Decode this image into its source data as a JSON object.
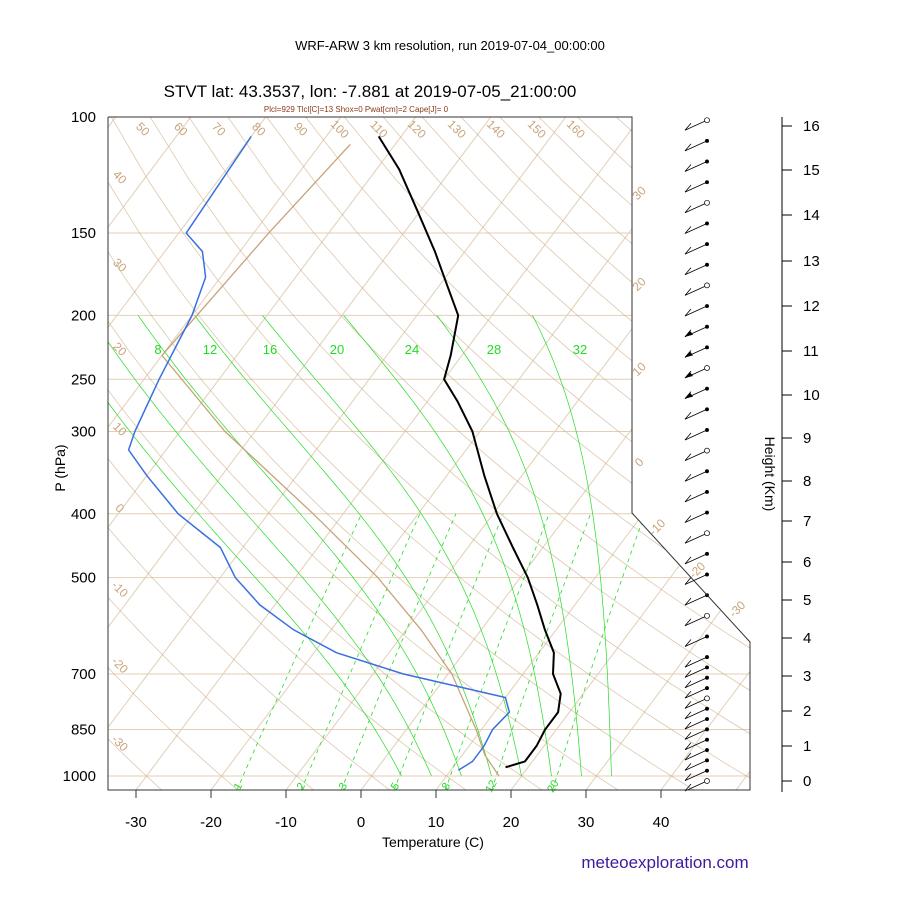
{
  "header": {
    "run_title": "WRF-ARW 3 km resolution, run 2019-07-04_00:00:00",
    "station_title": "STVT lat: 43.3537, lon: -7.881 at 2019-07-05_21:00:00",
    "indices": "Plcl=929 Tlcl[C]=13 Shox=0 Pwat[cm]=2 Cape[J]= 0"
  },
  "credit": "meteoexploration.com",
  "colors": {
    "temperature": "#000000",
    "dewpoint": "#3a6fe0",
    "isotherm": "#e2cfb6",
    "adiabat": "#c8a37a",
    "parcel": "#c8a37a",
    "mixing_ratio": "#22dd22",
    "moist_adiabat": "#22dd22"
  },
  "chart_data": {
    "type": "line",
    "subtype": "skew-T log-P sounding",
    "xlabel": "Temperature (C)",
    "ylabel": "P (hPa)",
    "y2label": "Height (Km)",
    "x_ticks": [
      "-30",
      "-20",
      "-10",
      "0",
      "10",
      "20",
      "30",
      "40"
    ],
    "p_ticks": [
      "100",
      "150",
      "200",
      "250",
      "300",
      "400",
      "500",
      "700",
      "850",
      "1000"
    ],
    "height_ticks": [
      "0",
      "1",
      "2",
      "3",
      "4",
      "5",
      "6",
      "7",
      "8",
      "9",
      "10",
      "11",
      "12",
      "13",
      "14",
      "15",
      "16"
    ],
    "isotherm_labels": [
      "50",
      "60",
      "70",
      "80",
      "90",
      "100",
      "110",
      "120",
      "130",
      "140",
      "150",
      "160"
    ],
    "adiabat_labels_left": [
      "40",
      "30",
      "20",
      "10",
      "0",
      "-10",
      "-20",
      "-30"
    ],
    "adiabat_labels_right": [
      "30",
      "20",
      "10",
      "0",
      "-10",
      "-20",
      "-30"
    ],
    "mixing_ratio_labels": [
      "8",
      "12",
      "16",
      "20",
      "24",
      "28",
      "32"
    ],
    "mixing_ratio_bottom_labels": [
      "1",
      "2",
      "3",
      "5",
      "8",
      "12",
      "20"
    ],
    "series": [
      {
        "role": "temperature",
        "points": [
          {
            "p": 970,
            "t": 17
          },
          {
            "p": 950,
            "t": 19
          },
          {
            "p": 900,
            "t": 19
          },
          {
            "p": 850,
            "t": 18.5
          },
          {
            "p": 800,
            "t": 18.5
          },
          {
            "p": 750,
            "t": 17
          },
          {
            "p": 700,
            "t": 14
          },
          {
            "p": 650,
            "t": 12
          },
          {
            "p": 600,
            "t": 8.5
          },
          {
            "p": 550,
            "t": 5
          },
          {
            "p": 500,
            "t": 1
          },
          {
            "p": 450,
            "t": -4
          },
          {
            "p": 400,
            "t": -9.5
          },
          {
            "p": 350,
            "t": -15
          },
          {
            "p": 300,
            "t": -21
          },
          {
            "p": 270,
            "t": -26
          },
          {
            "p": 250,
            "t": -30
          },
          {
            "p": 230,
            "t": -31.5
          },
          {
            "p": 200,
            "t": -34.5
          },
          {
            "p": 180,
            "t": -39
          },
          {
            "p": 160,
            "t": -44
          },
          {
            "p": 140,
            "t": -50
          },
          {
            "p": 120,
            "t": -57
          },
          {
            "p": 107,
            "t": -63
          }
        ]
      },
      {
        "role": "dewpoint",
        "points": [
          {
            "p": 980,
            "t": 11
          },
          {
            "p": 950,
            "t": 12
          },
          {
            "p": 900,
            "t": 12
          },
          {
            "p": 850,
            "t": 11.5
          },
          {
            "p": 800,
            "t": 12
          },
          {
            "p": 760,
            "t": 10
          },
          {
            "p": 700,
            "t": -6
          },
          {
            "p": 650,
            "t": -17
          },
          {
            "p": 600,
            "t": -25
          },
          {
            "p": 550,
            "t": -32
          },
          {
            "p": 500,
            "t": -38
          },
          {
            "p": 450,
            "t": -43
          },
          {
            "p": 400,
            "t": -52
          },
          {
            "p": 350,
            "t": -60
          },
          {
            "p": 320,
            "t": -65
          },
          {
            "p": 300,
            "t": -66
          },
          {
            "p": 250,
            "t": -68
          },
          {
            "p": 200,
            "t": -70
          },
          {
            "p": 175,
            "t": -72
          },
          {
            "p": 160,
            "t": -75
          },
          {
            "p": 150,
            "t": -79
          },
          {
            "p": 107,
            "t": -80
          }
        ]
      },
      {
        "role": "parcel",
        "points": [
          {
            "p": 1000,
            "t": 17
          },
          {
            "p": 929,
            "t": 13
          },
          {
            "p": 850,
            "t": 9.3
          },
          {
            "p": 700,
            "t": 0.5
          },
          {
            "p": 600,
            "t": -8
          },
          {
            "p": 500,
            "t": -19
          },
          {
            "p": 400,
            "t": -34
          },
          {
            "p": 300,
            "t": -54
          },
          {
            "p": 230,
            "t": -70
          },
          {
            "p": 150,
            "t": -68
          },
          {
            "p": 110,
            "t": -66
          }
        ]
      }
    ],
    "wind_barb_heights_km": [
      0,
      0.25,
      0.5,
      0.75,
      1,
      1.25,
      1.5,
      1.75,
      2,
      2.25,
      2.5,
      2.75,
      3,
      3.5,
      4,
      4.5,
      5,
      5.5,
      6,
      6.5,
      7,
      7.5,
      8,
      8.5,
      9,
      9.5,
      10,
      10.5,
      11,
      11.5,
      12,
      12.5,
      13,
      13.5,
      14,
      14.5,
      15,
      15.5,
      16
    ]
  }
}
